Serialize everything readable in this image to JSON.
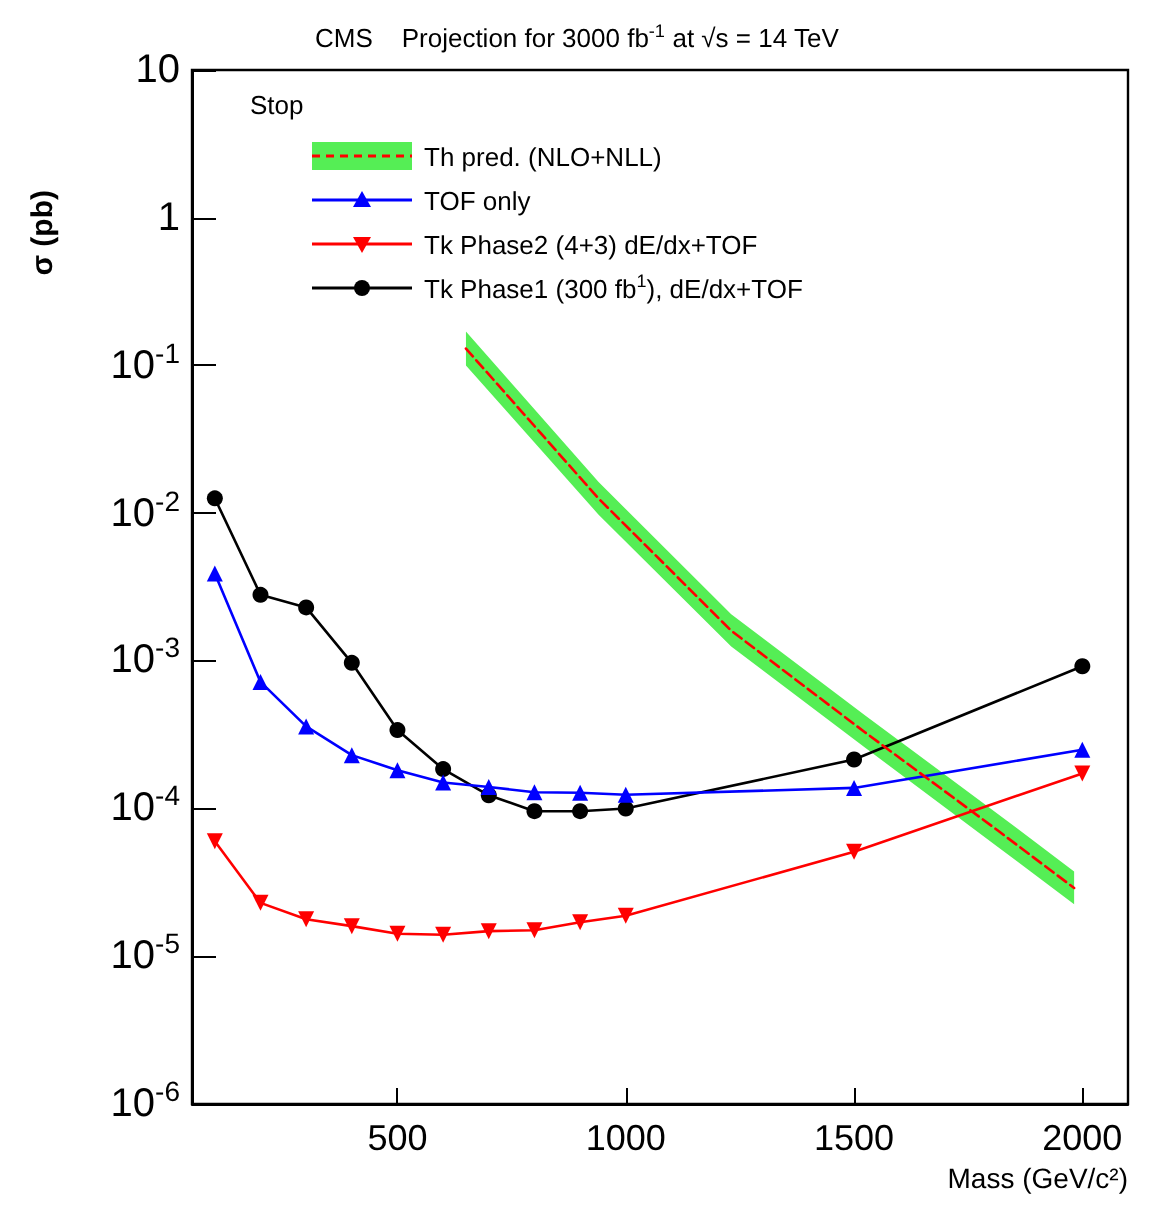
{
  "chart_data": {
    "type": "line",
    "title": "CMS    Projection for 3000 fb$^{-1}$ at √s = 14 TeV",
    "xlabel": "Mass (GeV/c²)",
    "ylabel": "σ (pb)",
    "legend_title": "Stop",
    "log": "y",
    "legend": "top left",
    "xlim": [
      50,
      2100
    ],
    "xticks": [
      500,
      1000,
      1500,
      2000
    ],
    "ylim": [
      1e-06,
      10
    ],
    "yticks": [
      {
        "value": 1e-06,
        "label": "10$^{-6}$"
      },
      {
        "value": 1e-05,
        "label": "10$^{-5}$"
      },
      {
        "value": 0.0001,
        "label": "10$^{-4}$"
      },
      {
        "value": 0.001,
        "label": "10$^{-3}$"
      },
      {
        "value": 0.01,
        "label": "10$^{-2}$"
      },
      {
        "value": 0.1,
        "label": "10$^{-1}$"
      },
      1,
      10
    ],
    "series": [
      {
        "name": "Th pred. (NLO+NLL)",
        "color": "#ff0000",
        "line_style": "dashed",
        "marker": "none",
        "x": [
          650,
          940,
          1231,
          1523,
          1815,
          1982
        ],
        "values": [
          0.13,
          0.0126,
          0.0016,
          0.00033,
          7.1e-05,
          2.9e-05
        ],
        "lower": [
          0.1,
          0.0098,
          0.00125,
          0.00026,
          5.5e-05,
          2.25e-05
        ],
        "upper": [
          0.17,
          0.0163,
          0.00207,
          0.00043,
          9.2e-05,
          3.75e-05
        ]
      },
      {
        "name": "TOF only",
        "color": "#0000ff",
        "marker": "triangle",
        "x": [
          100,
          200,
          300,
          400,
          500,
          600,
          700,
          800,
          900,
          1000,
          1500,
          2000
        ],
        "values": [
          0.0039,
          0.00072,
          0.00036,
          0.00023,
          0.000182,
          0.00015,
          0.00014,
          0.000129,
          0.000128,
          0.000124,
          0.000138,
          0.00025
        ]
      },
      {
        "name": "Tk Phase2 (4+3) dE/dx+TOF",
        "color": "#ff0000",
        "marker": "triangle_down",
        "x": [
          100,
          200,
          300,
          400,
          500,
          600,
          700,
          800,
          900,
          1000,
          1500,
          2000
        ],
        "values": [
          6e-05,
          2.3e-05,
          1.78e-05,
          1.6e-05,
          1.42e-05,
          1.4e-05,
          1.48e-05,
          1.5e-05,
          1.7e-05,
          1.88e-05,
          5.1e-05,
          0.000173
        ]
      },
      {
        "name": "Tk Phase1 (300 fb$^{1}$), dE/dx+TOF",
        "color": "#000000",
        "marker": "circle",
        "x": [
          100,
          200,
          300,
          400,
          500,
          600,
          700,
          800,
          900,
          1000,
          1500,
          2000
        ],
        "values": [
          0.0126,
          0.0028,
          0.0023,
          0.00097,
          0.00034,
          0.000185,
          0.000123,
          9.6e-05,
          9.6e-05,
          0.0001,
          0.000215,
          0.00092
        ]
      }
    ]
  }
}
